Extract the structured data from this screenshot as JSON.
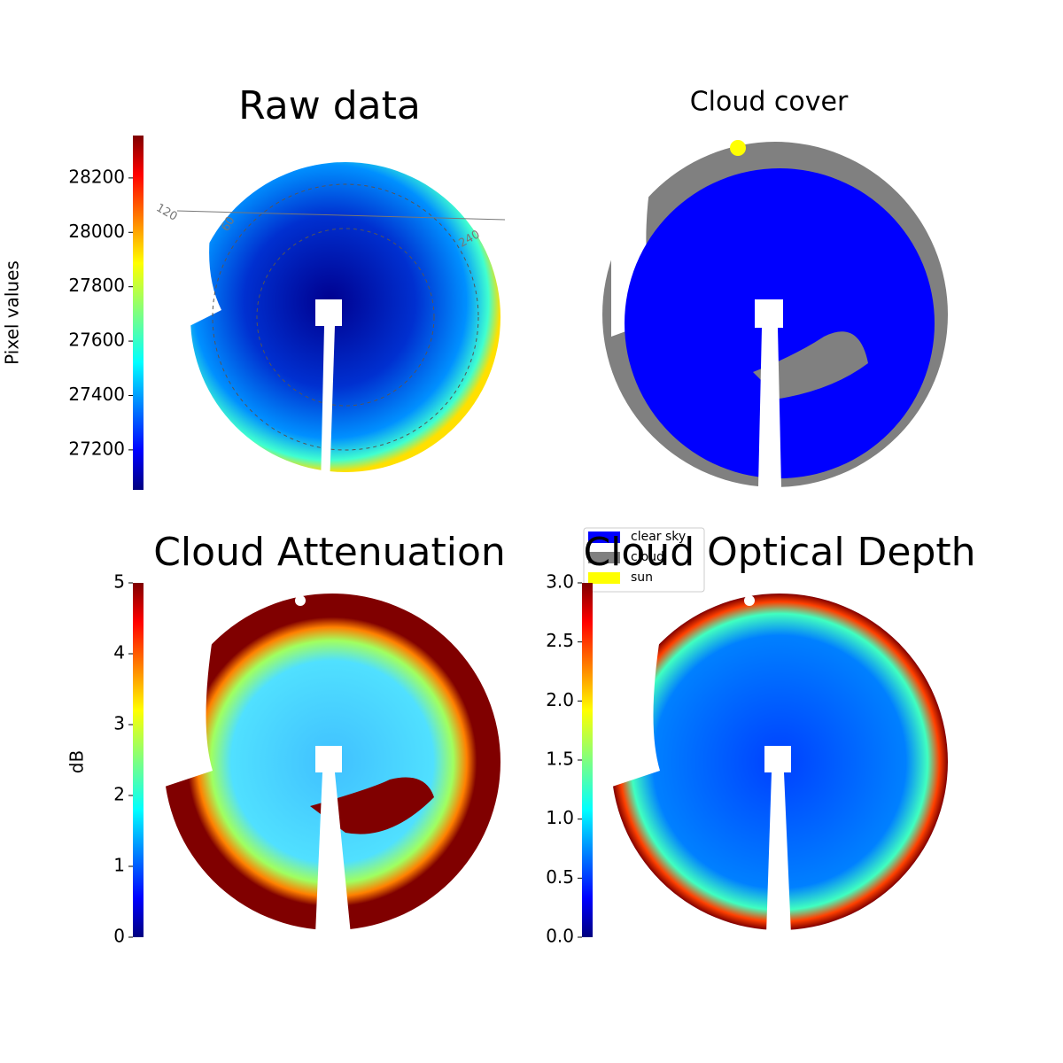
{
  "chart_data": [
    {
      "type": "heatmap",
      "title": "Raw data",
      "colorbar": {
        "label": "Pixel values",
        "lim": [
          27053,
          28356
        ],
        "ticks": [
          27200,
          27400,
          27600,
          27800,
          28000,
          28200
        ]
      },
      "polar_labels": [
        "120",
        "60",
        "240"
      ]
    },
    {
      "type": "categorical",
      "title": "Cloud cover",
      "legend": [
        {
          "name": "clear sky",
          "color": "#0000ff"
        },
        {
          "name": "cloud",
          "color": "#808080"
        },
        {
          "name": "sun",
          "color": "#ffff00"
        }
      ]
    },
    {
      "type": "heatmap",
      "title": "Cloud Attenuation",
      "colorbar": {
        "label": "dB",
        "lim": [
          0,
          5
        ],
        "ticks": [
          0,
          1,
          2,
          3,
          4,
          5
        ]
      }
    },
    {
      "type": "heatmap",
      "title": "Cloud Optical Depth",
      "colorbar": {
        "lim": [
          0,
          3
        ],
        "ticks": [
          {
            "value": 0,
            "label": "0.0"
          },
          0.5,
          {
            "value": 1,
            "label": "1.0"
          },
          1.5,
          {
            "value": 2,
            "label": "2.0"
          },
          2.5,
          {
            "value": 3,
            "label": "3.0"
          }
        ]
      }
    }
  ]
}
